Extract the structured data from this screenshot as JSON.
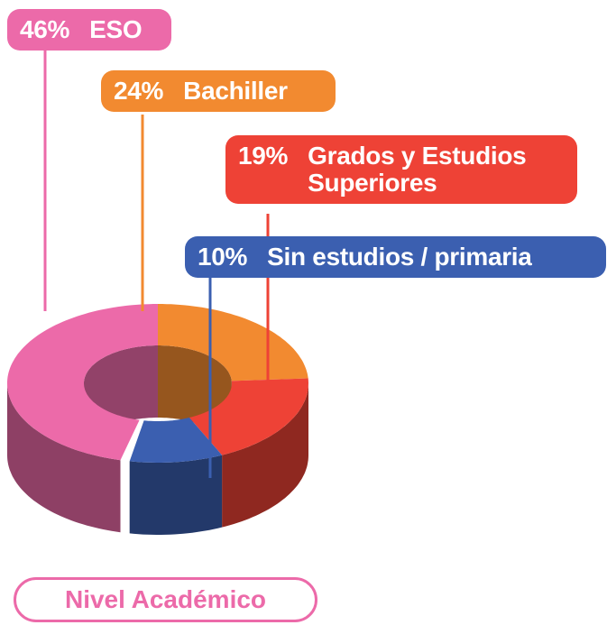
{
  "chart_data": {
    "type": "pie",
    "title": "Nivel Académico",
    "categories": [
      "ESO",
      "Bachiller",
      "Grados y Estudios Superiores",
      "Sin estudios / primaria"
    ],
    "values": [
      46,
      24,
      19,
      10
    ],
    "value_labels": [
      "46%",
      "24%",
      "19%",
      "10%"
    ],
    "colors": [
      "#ec6aa9",
      "#f28a30",
      "#ee4236",
      "#3b5fb0"
    ]
  }
}
